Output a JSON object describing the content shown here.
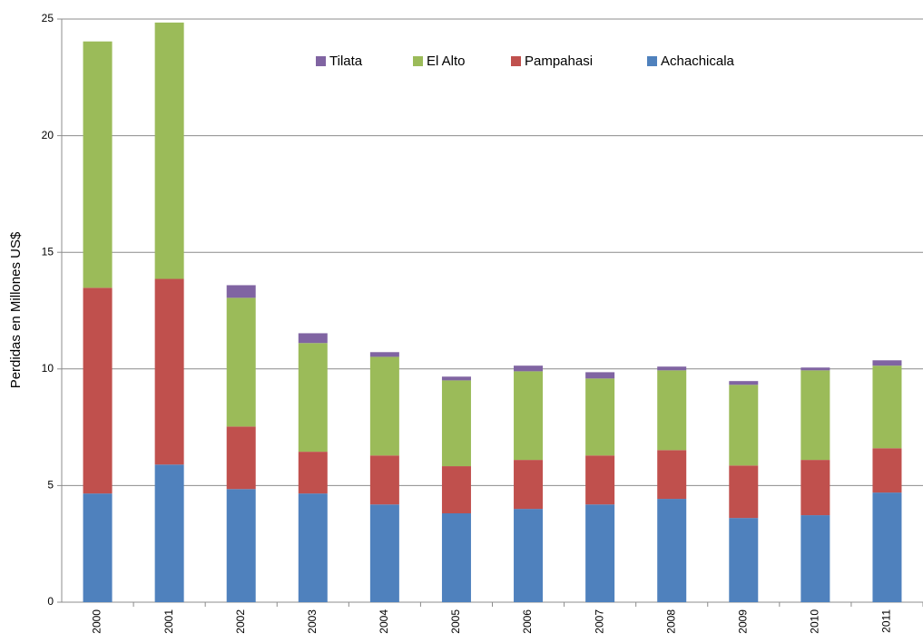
{
  "chart_data": {
    "type": "stacked_bar",
    "y_label": "Perdidas en Millones US$",
    "categories": [
      "2000",
      "2001",
      "2002",
      "2003",
      "2004",
      "2005",
      "2006",
      "2007",
      "2008",
      "2009",
      "2010",
      "2011"
    ],
    "series": [
      {
        "name": "Tilata",
        "color": "#8064a2",
        "values": [
          0,
          0,
          0.54,
          0.42,
          0.2,
          0.16,
          0.24,
          0.27,
          0.16,
          0.16,
          0.12,
          0.23
        ]
      },
      {
        "name": "El Alto",
        "color": "#9bbb59",
        "values": [
          10.56,
          10.99,
          5.52,
          4.66,
          4.23,
          3.68,
          3.8,
          3.3,
          3.42,
          3.46,
          3.84,
          3.54
        ]
      },
      {
        "name": "Pampahasi",
        "color": "#c0504d",
        "values": [
          8.82,
          7.96,
          2.68,
          1.79,
          2.1,
          2.02,
          2.1,
          2.1,
          2.09,
          2.25,
          2.37,
          1.9
        ]
      },
      {
        "name": "Achachicala",
        "color": "#4f81bd",
        "values": [
          4.66,
          5.9,
          4.85,
          4.66,
          4.19,
          3.81,
          4.0,
          4.19,
          4.43,
          3.61,
          3.73,
          4.7
        ]
      }
    ],
    "ylim": [
      0,
      25
    ],
    "yticks": [
      0,
      5,
      10,
      15,
      20,
      25
    ],
    "grid": true,
    "legend": "top"
  }
}
